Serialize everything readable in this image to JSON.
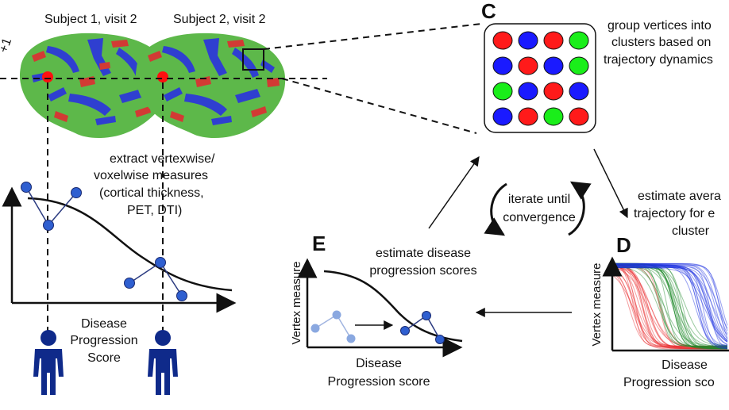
{
  "top": {
    "subject1_label": "Subject 1, visit 2",
    "subject2_label": "Subject 2, visit 2",
    "left_edge_fragment": "+1"
  },
  "panel_c": {
    "letter": "C",
    "caption_lines": [
      "group vertices into",
      "clusters based on",
      "trajectory dynamics"
    ],
    "grid_colors": [
      [
        "#ff1a1a",
        "#1a1aff",
        "#ff1a1a",
        "#1aee1a"
      ],
      [
        "#1a1aff",
        "#ff1a1a",
        "#1a1aff",
        "#1aee1a"
      ],
      [
        "#1aee1a",
        "#1a1aff",
        "#ff1a1a",
        "#1a1aff"
      ],
      [
        "#1a1aff",
        "#ff1a1a",
        "#1aee1a",
        "#ff1a1a"
      ]
    ]
  },
  "panel_left": {
    "caption_lines": [
      "extract vertexwise/",
      "voxelwise measures",
      "(cortical thickness,",
      "PET, DTI)"
    ],
    "xaxis_lines": [
      "Disease",
      "Progression",
      "Score"
    ]
  },
  "cycle": {
    "center_lines": [
      "iterate until",
      "convergence"
    ],
    "d_caption_lines": [
      "estimate avera",
      "trajectory for e",
      "cluster"
    ]
  },
  "panel_e": {
    "letter": "E",
    "caption_lines": [
      "estimate disease",
      "progression scores"
    ],
    "ylabel": "Vertex measure",
    "xlabel_lines": [
      "Disease",
      "Progression score"
    ]
  },
  "panel_d": {
    "letter": "D",
    "ylabel": "Vertex measure",
    "xlabel_lines": [
      "Disease",
      "Progression sco"
    ],
    "colors": {
      "red": "#e8282a",
      "green": "#1f8a2a",
      "blue": "#1a2ee0"
    }
  },
  "colors": {
    "brain_green": "#5db84a",
    "brain_blue": "#2f3fd0",
    "brain_red": "#d23a34",
    "marker_red": "#ff1010",
    "node_blue": "#2f5fd0",
    "node_light": "#8aa8e0",
    "person_navy": "#0f2a8a"
  }
}
